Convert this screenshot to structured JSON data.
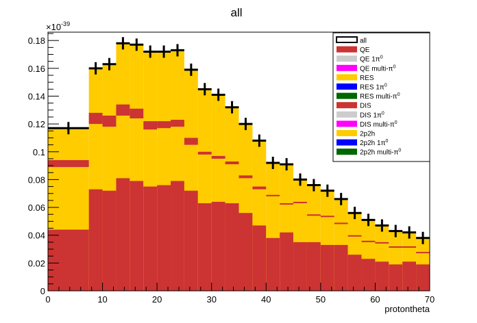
{
  "chart_data": {
    "type": "bar",
    "title": "all",
    "xlabel": "protontheta",
    "ylabel": "",
    "y_exponent_label": "×10",
    "y_exponent_power": "-39",
    "xlim": [
      0,
      70
    ],
    "ylim": [
      0,
      0.186
    ],
    "x_ticks": [
      0,
      10,
      20,
      30,
      40,
      50,
      60,
      70
    ],
    "x_tick_labels": [
      "0",
      "10",
      "20",
      "30",
      "40",
      "50",
      "60",
      "70"
    ],
    "y_ticks": [
      0,
      0.02,
      0.04,
      0.06,
      0.08,
      0.1,
      0.12,
      0.14,
      0.16,
      0.18
    ],
    "y_tick_labels": [
      "0",
      "0.02",
      "0.04",
      "0.06",
      "0.08",
      "0.1",
      "0.12",
      "0.14",
      "0.16",
      "0.18"
    ],
    "bins": [
      {
        "x0": 0,
        "x1": 7.5,
        "x": 3.75,
        "total": 0.117,
        "qe": 0.044,
        "dis": 0.094,
        "dis_lo": 0.089
      },
      {
        "x0": 7.5,
        "x1": 10,
        "x": 8.75,
        "total": 0.16,
        "qe": 0.073,
        "dis": 0.128,
        "dis_lo": 0.12
      },
      {
        "x0": 10,
        "x1": 12.5,
        "x": 11.25,
        "total": 0.163,
        "qe": 0.072,
        "dis": 0.126,
        "dis_lo": 0.118
      },
      {
        "x0": 12.5,
        "x1": 15,
        "x": 13.75,
        "total": 0.178,
        "qe": 0.081,
        "dis": 0.134,
        "dis_lo": 0.126
      },
      {
        "x0": 15,
        "x1": 17.5,
        "x": 16.25,
        "total": 0.177,
        "qe": 0.079,
        "dis": 0.131,
        "dis_lo": 0.124
      },
      {
        "x0": 17.5,
        "x1": 20,
        "x": 18.75,
        "total": 0.172,
        "qe": 0.075,
        "dis": 0.122,
        "dis_lo": 0.116
      },
      {
        "x0": 20,
        "x1": 22.5,
        "x": 21.25,
        "total": 0.172,
        "qe": 0.076,
        "dis": 0.122,
        "dis_lo": 0.117
      },
      {
        "x0": 22.5,
        "x1": 25,
        "x": 23.75,
        "total": 0.173,
        "qe": 0.079,
        "dis": 0.123,
        "dis_lo": 0.118
      },
      {
        "x0": 25,
        "x1": 27.5,
        "x": 26.25,
        "total": 0.159,
        "qe": 0.072,
        "dis": 0.11,
        "dis_lo": 0.105
      },
      {
        "x0": 27.5,
        "x1": 30,
        "x": 28.75,
        "total": 0.145,
        "qe": 0.063,
        "dis": 0.1,
        "dis_lo": 0.098
      },
      {
        "x0": 30,
        "x1": 32.5,
        "x": 31.25,
        "total": 0.141,
        "qe": 0.064,
        "dis": 0.097,
        "dis_lo": 0.095
      },
      {
        "x0": 32.5,
        "x1": 35,
        "x": 33.75,
        "total": 0.132,
        "qe": 0.063,
        "dis": 0.093,
        "dis_lo": 0.091
      },
      {
        "x0": 35,
        "x1": 37.5,
        "x": 36.25,
        "total": 0.12,
        "qe": 0.056,
        "dis": 0.083,
        "dis_lo": 0.081
      },
      {
        "x0": 37.5,
        "x1": 40,
        "x": 38.75,
        "total": 0.108,
        "qe": 0.047,
        "dis": 0.075,
        "dis_lo": 0.073
      },
      {
        "x0": 40,
        "x1": 42.5,
        "x": 41.25,
        "total": 0.092,
        "qe": 0.038,
        "dis": 0.069,
        "dis_lo": 0.068
      },
      {
        "x0": 42.5,
        "x1": 45,
        "x": 43.75,
        "total": 0.091,
        "qe": 0.042,
        "dis": 0.063,
        "dis_lo": 0.062
      },
      {
        "x0": 45,
        "x1": 47.5,
        "x": 46.25,
        "total": 0.08,
        "qe": 0.035,
        "dis": 0.064,
        "dis_lo": 0.063
      },
      {
        "x0": 47.5,
        "x1": 50,
        "x": 48.75,
        "total": 0.076,
        "qe": 0.035,
        "dis": 0.055,
        "dis_lo": 0.054
      },
      {
        "x0": 50,
        "x1": 52.5,
        "x": 51.25,
        "total": 0.072,
        "qe": 0.033,
        "dis": 0.054,
        "dis_lo": 0.053
      },
      {
        "x0": 52.5,
        "x1": 55,
        "x": 53.75,
        "total": 0.066,
        "qe": 0.033,
        "dis": 0.049,
        "dis_lo": 0.048
      },
      {
        "x0": 55,
        "x1": 57.5,
        "x": 56.25,
        "total": 0.056,
        "qe": 0.026,
        "dis": 0.04,
        "dis_lo": 0.039
      },
      {
        "x0": 57.5,
        "x1": 60,
        "x": 58.75,
        "total": 0.051,
        "qe": 0.023,
        "dis": 0.036,
        "dis_lo": 0.035
      },
      {
        "x0": 60,
        "x1": 62.5,
        "x": 61.25,
        "total": 0.047,
        "qe": 0.021,
        "dis": 0.035,
        "dis_lo": 0.034
      },
      {
        "x0": 62.5,
        "x1": 65,
        "x": 63.75,
        "total": 0.043,
        "qe": 0.019,
        "dis": 0.032,
        "dis_lo": 0.031
      },
      {
        "x0": 65,
        "x1": 67.5,
        "x": 66.25,
        "total": 0.042,
        "qe": 0.021,
        "dis": 0.032,
        "dis_lo": 0.031
      },
      {
        "x0": 67.5,
        "x1": 70,
        "x": 68.75,
        "total": 0.038,
        "qe": 0.019,
        "dis": 0.028,
        "dis_lo": 0.027
      }
    ],
    "legend_placement": "top-right",
    "legend": [
      {
        "label": "all",
        "sup": "",
        "color": "#ffffff",
        "style": "line"
      },
      {
        "label": "QE",
        "sup": "",
        "color": "#cc3333",
        "style": "fill"
      },
      {
        "label": "QE 1π",
        "sup": "0",
        "color": "#cccccc",
        "style": "fill"
      },
      {
        "label": "QE multi-π",
        "sup": "0",
        "color": "#ff00ff",
        "style": "fill"
      },
      {
        "label": "RES",
        "sup": "",
        "color": "#ffcc00",
        "style": "fill"
      },
      {
        "label": "RES 1π",
        "sup": "0",
        "color": "#0000ff",
        "style": "fill"
      },
      {
        "label": "RES multi-π",
        "sup": "0",
        "color": "#006600",
        "style": "fill"
      },
      {
        "label": "DIS",
        "sup": "",
        "color": "#cc3333",
        "style": "fill"
      },
      {
        "label": "DIS 1π",
        "sup": "0",
        "color": "#cccccc",
        "style": "fill"
      },
      {
        "label": "DIS multi-π",
        "sup": "0",
        "color": "#ff00ff",
        "style": "fill"
      },
      {
        "label": "2p2h",
        "sup": "",
        "color": "#ffcc00",
        "style": "fill"
      },
      {
        "label": "2p2h 1π",
        "sup": "0",
        "color": "#0000ff",
        "style": "fill"
      },
      {
        "label": "2p2h multi-π",
        "sup": "0",
        "color": "#006600",
        "style": "fill"
      }
    ],
    "colors": {
      "qe": "#cc3333",
      "res": "#ffcc00",
      "dis": "#cc3333",
      "data": "#000000"
    }
  }
}
